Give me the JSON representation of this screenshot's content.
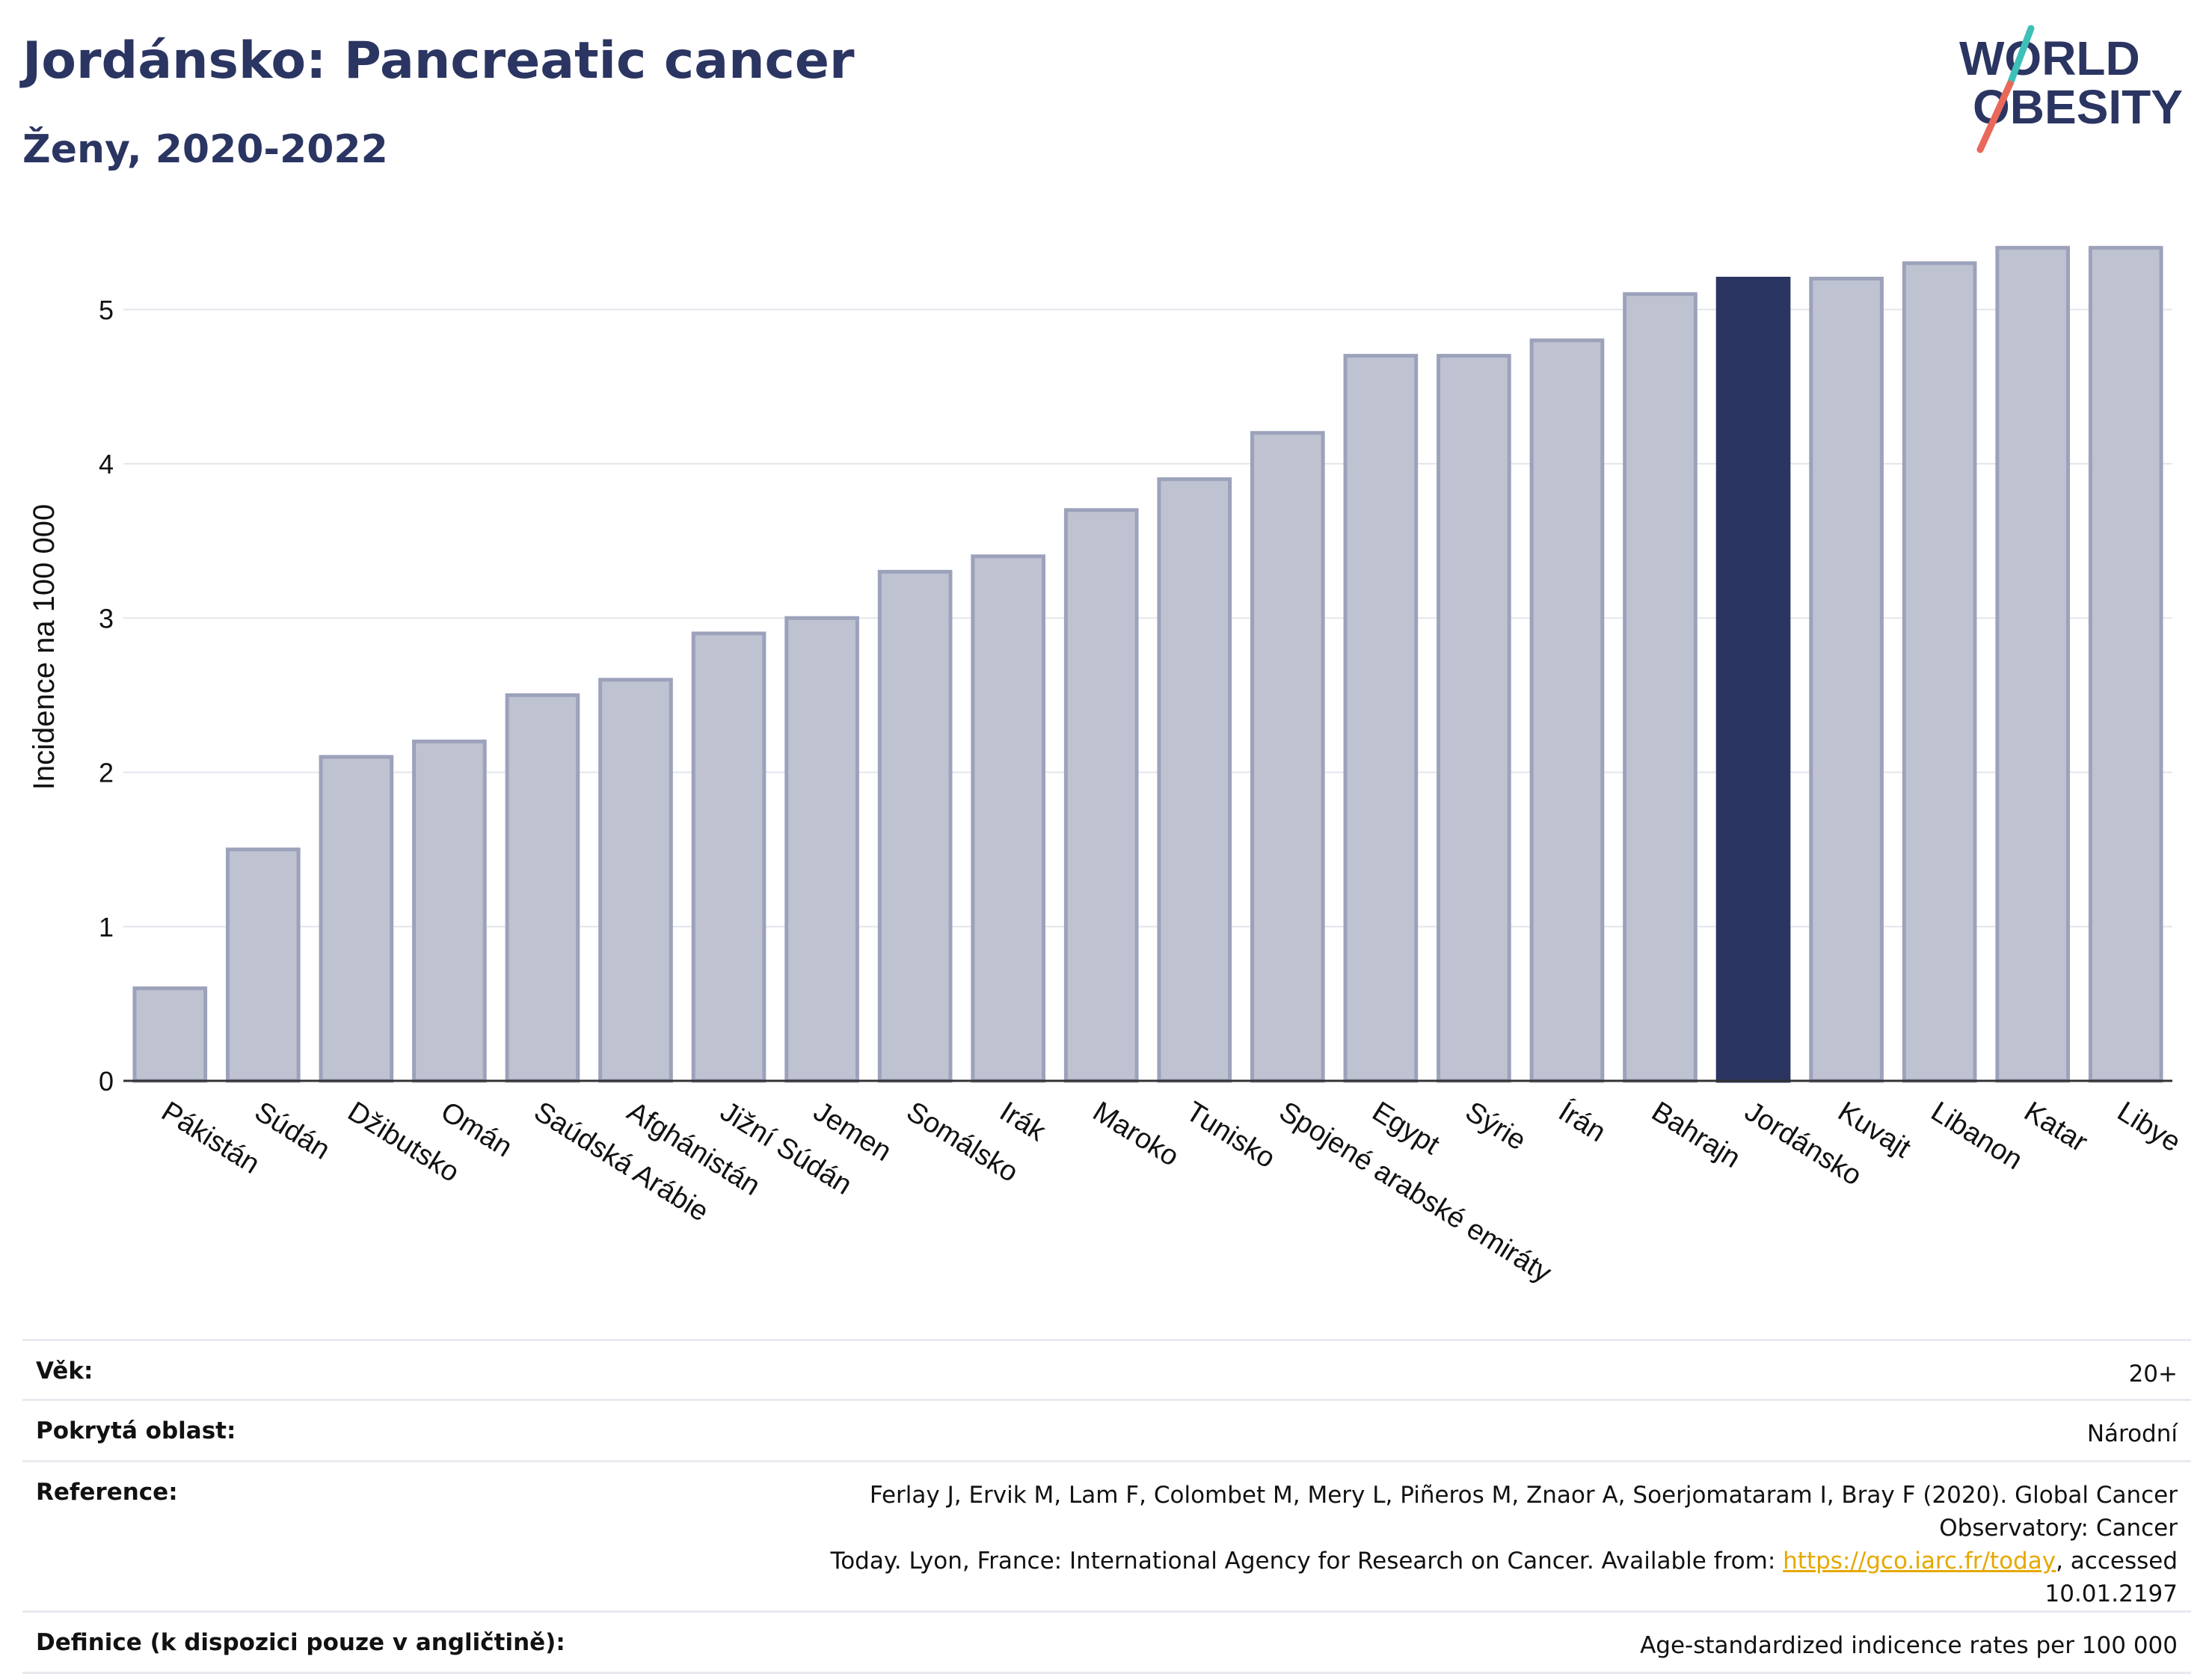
{
  "header": {
    "title": "Jordánsko: Pancreatic cancer",
    "subtitle": "Ženy, 2020-2022"
  },
  "logo": {
    "line1": "WORLD",
    "line2": "OBESITY",
    "colors": {
      "text": "#2b3562",
      "slash_top": "#3cc0b8",
      "slash_bottom": "#e8695a"
    }
  },
  "chart_data": {
    "type": "bar",
    "ylabel": "Incidence na 100 000",
    "ylim": [
      0,
      5.6
    ],
    "yticks": [
      0,
      1,
      2,
      3,
      4,
      5
    ],
    "grid": true,
    "highlight": "Jordánsko",
    "colors": {
      "bar": "#bfc2d0",
      "bar_border": "#9da2bb",
      "highlight": "#2b3562"
    },
    "categories": [
      "Pákistán",
      "Súdán",
      "Džibutsko",
      "Omán",
      "Saúdská Arábie",
      "Afghánistán",
      "Jižní Súdán",
      "Jemen",
      "Somálsko",
      "Irák",
      "Maroko",
      "Tunisko",
      "Spojené arabské emiráty",
      "Egypt",
      "Sýrie",
      "Írán",
      "Bahrajn",
      "Jordánsko",
      "Kuvajt",
      "Libanon",
      "Katar",
      "Libye"
    ],
    "values": [
      0.6,
      1.5,
      2.1,
      2.2,
      2.5,
      2.6,
      2.9,
      3.0,
      3.3,
      3.4,
      3.7,
      3.9,
      4.2,
      4.7,
      4.7,
      4.8,
      5.1,
      5.2,
      5.2,
      5.3,
      5.4,
      5.4
    ]
  },
  "info": {
    "age_label": "Věk:",
    "age_value": "20+",
    "area_label": "Pokrytá oblast:",
    "area_value": "Národní",
    "reference_label": "Reference:",
    "reference_line1": "Ferlay J, Ervik M, Lam F, Colombet M, Mery L, Piñeros M, Znaor A, Soerjomataram I, Bray F (2020). Global Cancer Observatory: Cancer",
    "reference_line2_before": "Today. Lyon, France: International Agency for Research on Cancer. Available from: ",
    "reference_link": "https://gco.iarc.fr/today",
    "reference_line2_after": ", accessed 10.01.2197",
    "definition_label": "Definice (k dispozici pouze v angličtině):",
    "definition_value": "Age-standardized indicence rates per 100 000"
  }
}
